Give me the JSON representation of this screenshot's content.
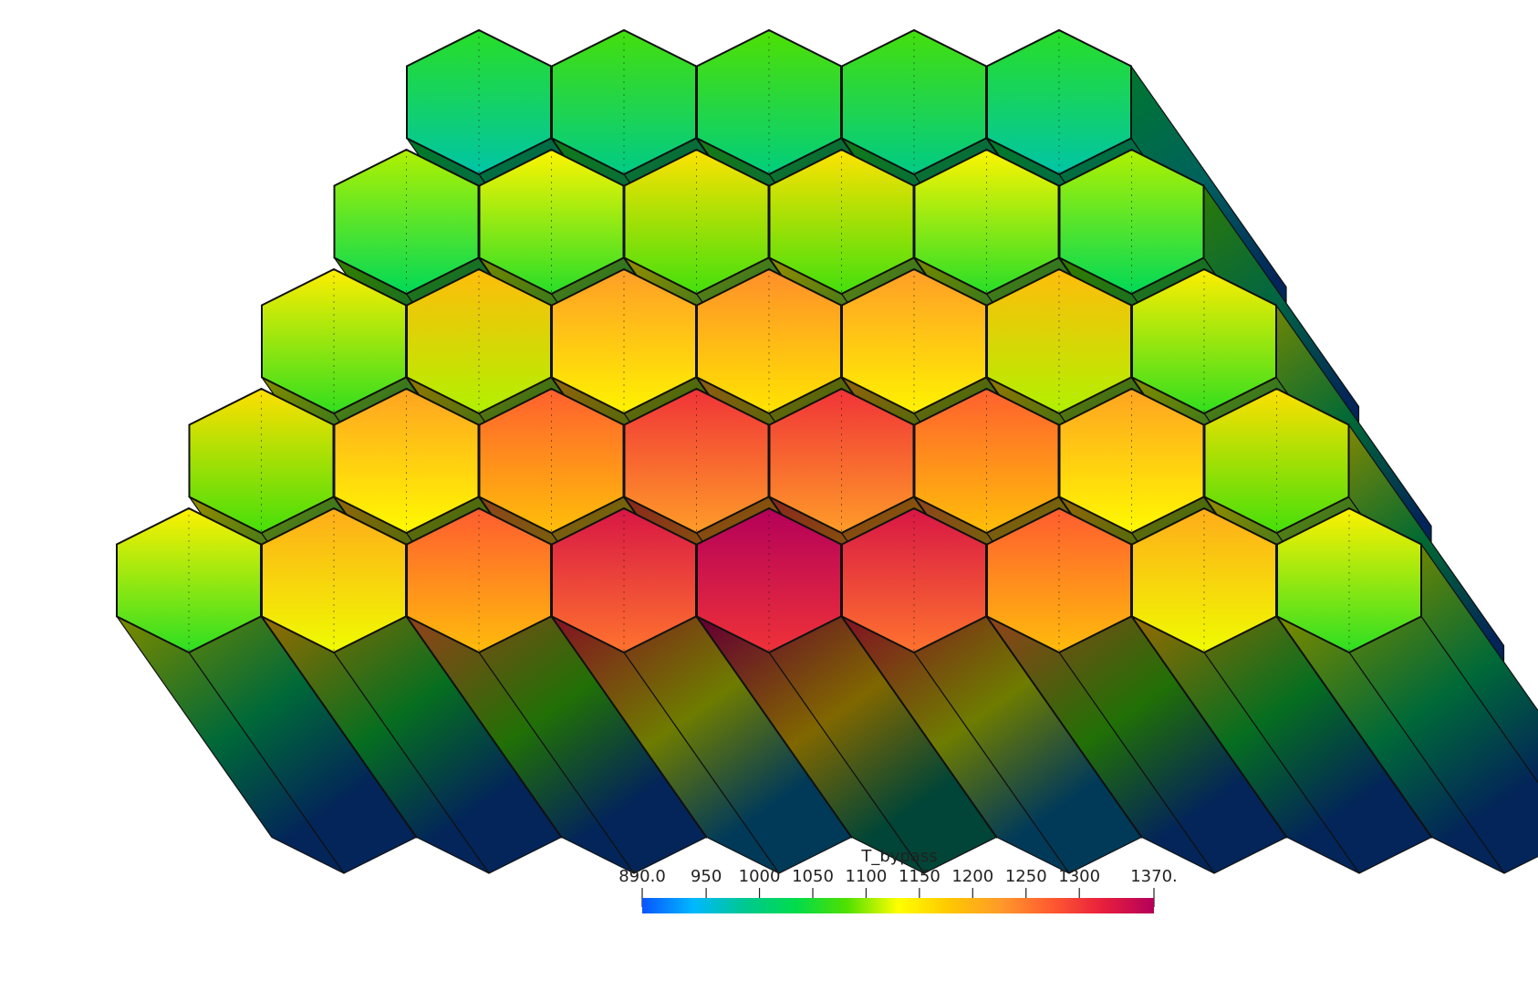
{
  "render": {
    "background": "#ffffff",
    "edge_color": "#111111",
    "colormap": [
      "#0a55ff",
      "#00b8ff",
      "#00c890",
      "#00dc4c",
      "#50e000",
      "#ffff00",
      "#ffc800",
      "#ff9a2a",
      "#ff5a30",
      "#e81f3c",
      "#b4005a"
    ]
  },
  "colorbar": {
    "title": "T_bypass",
    "min": 890.0,
    "max": 1370.0,
    "ticks": [
      {
        "value": 890.0,
        "label": "890.0"
      },
      {
        "value": 950,
        "label": "950"
      },
      {
        "value": 1000,
        "label": "1000"
      },
      {
        "value": 1050,
        "label": "1050"
      },
      {
        "value": 1100,
        "label": "1100"
      },
      {
        "value": 1150,
        "label": "1150"
      },
      {
        "value": 1200,
        "label": "1200"
      },
      {
        "value": 1250,
        "label": "1250"
      },
      {
        "value": 1300,
        "label": "1300"
      },
      {
        "value": 1370,
        "label": "1370."
      }
    ]
  }
}
